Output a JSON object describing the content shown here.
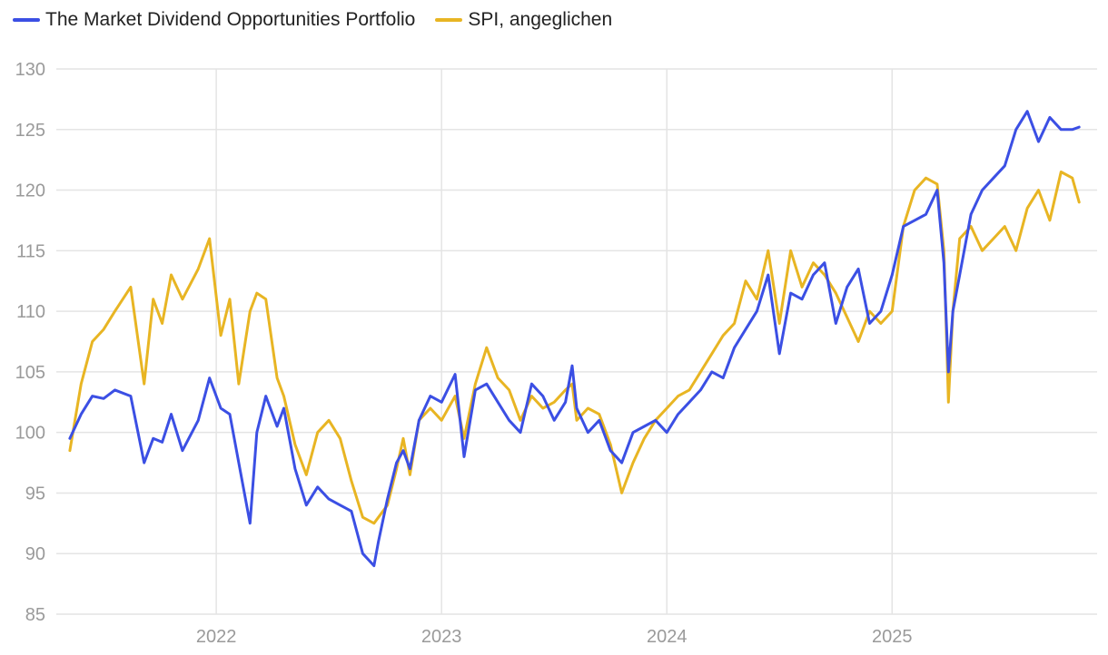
{
  "chart_data": {
    "type": "line",
    "title": "",
    "xlabel": "",
    "ylabel": "",
    "ylim": [
      85,
      130
    ],
    "yticks": [
      85,
      90,
      95,
      100,
      105,
      110,
      115,
      120,
      125,
      130
    ],
    "xlim": [
      2021.29,
      2025.91
    ],
    "xticks": [
      {
        "value": 2022,
        "label": "2022"
      },
      {
        "value": 2023,
        "label": "2023"
      },
      {
        "value": 2024,
        "label": "2024"
      },
      {
        "value": 2025,
        "label": "2025"
      }
    ],
    "grid": true,
    "legend_position": "top-left",
    "series": [
      {
        "name": "The Market Dividend Opportunities Portfolio",
        "color": "#3b4fe4",
        "x": [
          2021.35,
          2021.4,
          2021.45,
          2021.5,
          2021.55,
          2021.62,
          2021.68,
          2021.72,
          2021.76,
          2021.8,
          2021.85,
          2021.92,
          2021.97,
          2022.02,
          2022.06,
          2022.1,
          2022.15,
          2022.18,
          2022.22,
          2022.27,
          2022.3,
          2022.35,
          2022.4,
          2022.45,
          2022.5,
          2022.55,
          2022.6,
          2022.65,
          2022.7,
          2022.72,
          2022.76,
          2022.8,
          2022.83,
          2022.86,
          2022.9,
          2022.95,
          2023.0,
          2023.06,
          2023.1,
          2023.15,
          2023.2,
          2023.25,
          2023.3,
          2023.35,
          2023.4,
          2023.45,
          2023.5,
          2023.55,
          2023.58,
          2023.6,
          2023.65,
          2023.7,
          2023.75,
          2023.8,
          2023.85,
          2023.9,
          2023.95,
          2024.0,
          2024.05,
          2024.1,
          2024.15,
          2024.2,
          2024.25,
          2024.3,
          2024.35,
          2024.4,
          2024.45,
          2024.5,
          2024.55,
          2024.6,
          2024.65,
          2024.7,
          2024.75,
          2024.8,
          2024.85,
          2024.9,
          2024.95,
          2025.0,
          2025.05,
          2025.1,
          2025.15,
          2025.2,
          2025.23,
          2025.25,
          2025.27,
          2025.3,
          2025.35,
          2025.4,
          2025.45,
          2025.5,
          2025.55,
          2025.6,
          2025.65,
          2025.7,
          2025.75,
          2025.8,
          2025.83
        ],
        "values": [
          99.5,
          101.5,
          103.0,
          102.8,
          103.5,
          103.0,
          97.5,
          99.5,
          99.2,
          101.5,
          98.5,
          101.0,
          104.5,
          102.0,
          101.5,
          97.5,
          92.5,
          100.0,
          103.0,
          100.5,
          102.0,
          97.0,
          94.0,
          95.5,
          94.5,
          94.0,
          93.5,
          90.0,
          89.0,
          91.0,
          94.5,
          97.5,
          98.5,
          97.0,
          101.0,
          103.0,
          102.5,
          104.8,
          98.0,
          103.5,
          104.0,
          102.5,
          101.0,
          100.0,
          104.0,
          103.0,
          101.0,
          102.5,
          105.5,
          102.0,
          100.0,
          101.0,
          98.5,
          97.5,
          100.0,
          100.5,
          101.0,
          100.0,
          101.5,
          102.5,
          103.5,
          105.0,
          104.5,
          107.0,
          108.5,
          110.0,
          113.0,
          106.5,
          111.5,
          111.0,
          113.0,
          114.0,
          109.0,
          112.0,
          113.5,
          109.0,
          110.0,
          113.0,
          117.0,
          117.5,
          118.0,
          120.0,
          114.0,
          105.0,
          110.0,
          113.0,
          118.0,
          120.0,
          121.0,
          122.0,
          125.0,
          126.5,
          124.0,
          126.0,
          125.0,
          125.0,
          125.2
        ]
      },
      {
        "name": "SPI, angeglichen",
        "color": "#e8b523",
        "x": [
          2021.35,
          2021.4,
          2021.45,
          2021.5,
          2021.55,
          2021.62,
          2021.68,
          2021.72,
          2021.76,
          2021.8,
          2021.85,
          2021.92,
          2021.97,
          2022.02,
          2022.06,
          2022.1,
          2022.15,
          2022.18,
          2022.22,
          2022.27,
          2022.3,
          2022.35,
          2022.4,
          2022.45,
          2022.5,
          2022.55,
          2022.6,
          2022.65,
          2022.7,
          2022.72,
          2022.76,
          2022.8,
          2022.83,
          2022.86,
          2022.9,
          2022.95,
          2023.0,
          2023.06,
          2023.1,
          2023.15,
          2023.2,
          2023.25,
          2023.3,
          2023.35,
          2023.4,
          2023.45,
          2023.5,
          2023.55,
          2023.58,
          2023.6,
          2023.65,
          2023.7,
          2023.75,
          2023.8,
          2023.85,
          2023.9,
          2023.95,
          2024.0,
          2024.05,
          2024.1,
          2024.15,
          2024.2,
          2024.25,
          2024.3,
          2024.35,
          2024.4,
          2024.45,
          2024.5,
          2024.55,
          2024.6,
          2024.65,
          2024.7,
          2024.75,
          2024.8,
          2024.85,
          2024.9,
          2024.95,
          2025.0,
          2025.05,
          2025.1,
          2025.15,
          2025.2,
          2025.23,
          2025.25,
          2025.27,
          2025.3,
          2025.35,
          2025.4,
          2025.45,
          2025.5,
          2025.55,
          2025.6,
          2025.65,
          2025.7,
          2025.75,
          2025.8,
          2025.83
        ],
        "values": [
          98.5,
          104.0,
          107.5,
          108.5,
          110.0,
          112.0,
          104.0,
          111.0,
          109.0,
          113.0,
          111.0,
          113.5,
          116.0,
          108.0,
          111.0,
          104.0,
          110.0,
          111.5,
          111.0,
          104.5,
          103.0,
          99.0,
          96.5,
          100.0,
          101.0,
          99.5,
          96.0,
          93.0,
          92.5,
          93.0,
          94.0,
          97.0,
          99.5,
          96.5,
          101.0,
          102.0,
          101.0,
          103.0,
          99.5,
          104.0,
          107.0,
          104.5,
          103.5,
          101.0,
          103.0,
          102.0,
          102.5,
          103.5,
          104.0,
          101.0,
          102.0,
          101.5,
          99.0,
          95.0,
          97.5,
          99.5,
          101.0,
          102.0,
          103.0,
          103.5,
          105.0,
          106.5,
          108.0,
          109.0,
          112.5,
          111.0,
          115.0,
          109.0,
          115.0,
          112.0,
          114.0,
          113.0,
          111.5,
          109.5,
          107.5,
          110.0,
          109.0,
          110.0,
          117.0,
          120.0,
          121.0,
          120.5,
          115.0,
          102.5,
          110.0,
          116.0,
          117.0,
          115.0,
          116.0,
          117.0,
          115.0,
          118.5,
          120.0,
          117.5,
          121.5,
          121.0,
          119.0
        ]
      }
    ]
  }
}
